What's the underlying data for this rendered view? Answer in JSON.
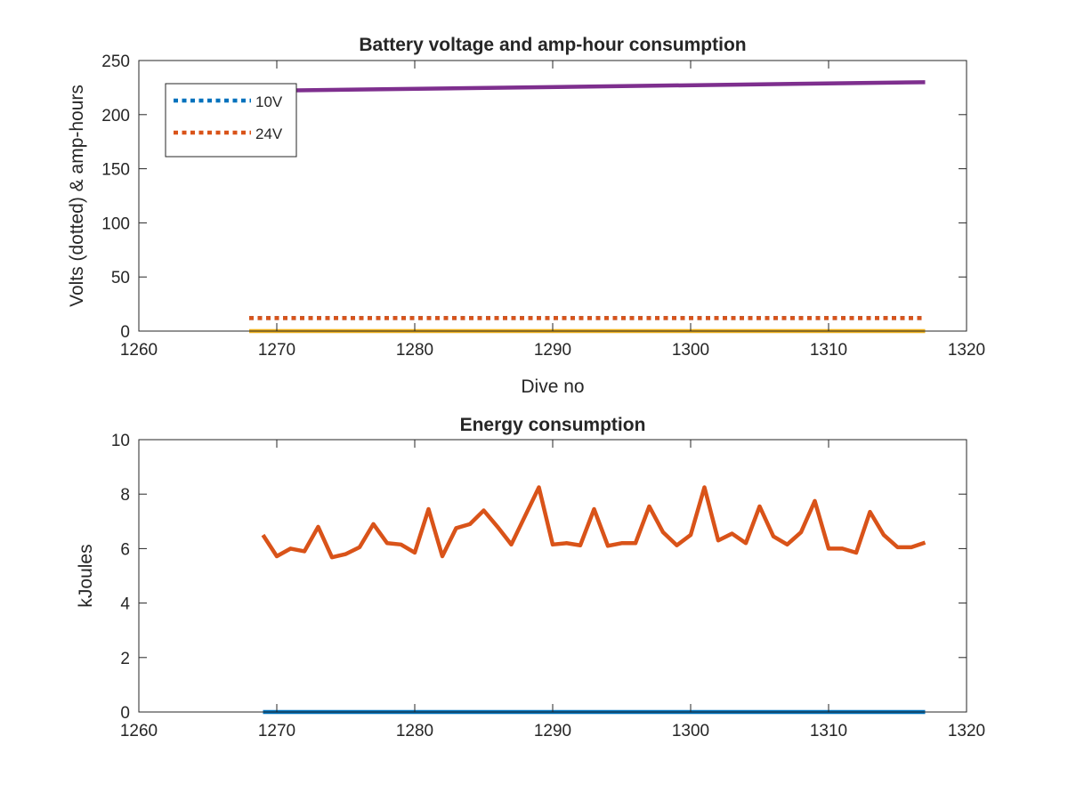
{
  "chart_data": [
    {
      "type": "line",
      "title": "Battery voltage and amp-hour consumption",
      "xlabel": "Dive no",
      "ylabel": "Volts (dotted) & amp-hours",
      "xlim": [
        1260,
        1320
      ],
      "ylim": [
        0,
        250
      ],
      "xticks": [
        "1260",
        "1270",
        "1280",
        "1290",
        "1300",
        "1310",
        "1320"
      ],
      "yticks": [
        "0",
        "50",
        "100",
        "150",
        "200",
        "250"
      ],
      "grid": false,
      "legend_position": "top-left",
      "series": [
        {
          "name": "10V",
          "color": "#0072BD",
          "style": "dotted",
          "x": [
            1268,
            1317
          ],
          "y": [
            12,
            12
          ]
        },
        {
          "name": "24V",
          "color": "#D95319",
          "style": "dotted",
          "x": [
            1268,
            1317
          ],
          "y": [
            12,
            12
          ]
        },
        {
          "color": "#EDB120",
          "style": "solid",
          "x": [
            1268,
            1317
          ],
          "y": [
            0,
            0
          ]
        },
        {
          "color": "#7E2F8E",
          "style": "solid",
          "x": [
            1269,
            1317
          ],
          "y": [
            222,
            230
          ]
        }
      ]
    },
    {
      "type": "line",
      "title": "Energy consumption",
      "xlabel": "",
      "ylabel": "kJoules",
      "xlim": [
        1260,
        1320
      ],
      "ylim": [
        0,
        10
      ],
      "xticks": [
        "1260",
        "1270",
        "1280",
        "1290",
        "1300",
        "1310",
        "1320"
      ],
      "yticks": [
        "0",
        "2",
        "4",
        "6",
        "8",
        "10"
      ],
      "grid": false,
      "series": [
        {
          "color": "#0072BD",
          "style": "solid",
          "x": [
            1269,
            1317
          ],
          "y": [
            0,
            0
          ]
        },
        {
          "color": "#D95319",
          "style": "solid",
          "x": [
            1269,
            1270,
            1271,
            1272,
            1273,
            1274,
            1275,
            1276,
            1277,
            1278,
            1279,
            1280,
            1281,
            1282,
            1283,
            1284,
            1285,
            1286,
            1287,
            1288,
            1289,
            1290,
            1291,
            1292,
            1293,
            1294,
            1295,
            1296,
            1297,
            1298,
            1299,
            1300,
            1301,
            1302,
            1303,
            1304,
            1305,
            1306,
            1307,
            1308,
            1309,
            1310,
            1311,
            1312,
            1313,
            1314,
            1315,
            1316,
            1317
          ],
          "y": [
            6.5,
            5.72,
            6.0,
            5.9,
            6.8,
            5.68,
            5.8,
            6.05,
            6.9,
            6.2,
            6.15,
            5.85,
            7.45,
            5.72,
            6.75,
            6.9,
            7.4,
            6.8,
            6.15,
            7.2,
            8.25,
            6.15,
            6.2,
            6.12,
            7.45,
            6.1,
            6.2,
            6.2,
            7.55,
            6.6,
            6.12,
            6.5,
            8.25,
            6.3,
            6.55,
            6.2,
            7.55,
            6.45,
            6.15,
            6.6,
            7.75,
            6.0,
            6.0,
            5.85,
            7.35,
            6.5,
            6.05,
            6.05,
            6.22
          ]
        }
      ]
    }
  ]
}
